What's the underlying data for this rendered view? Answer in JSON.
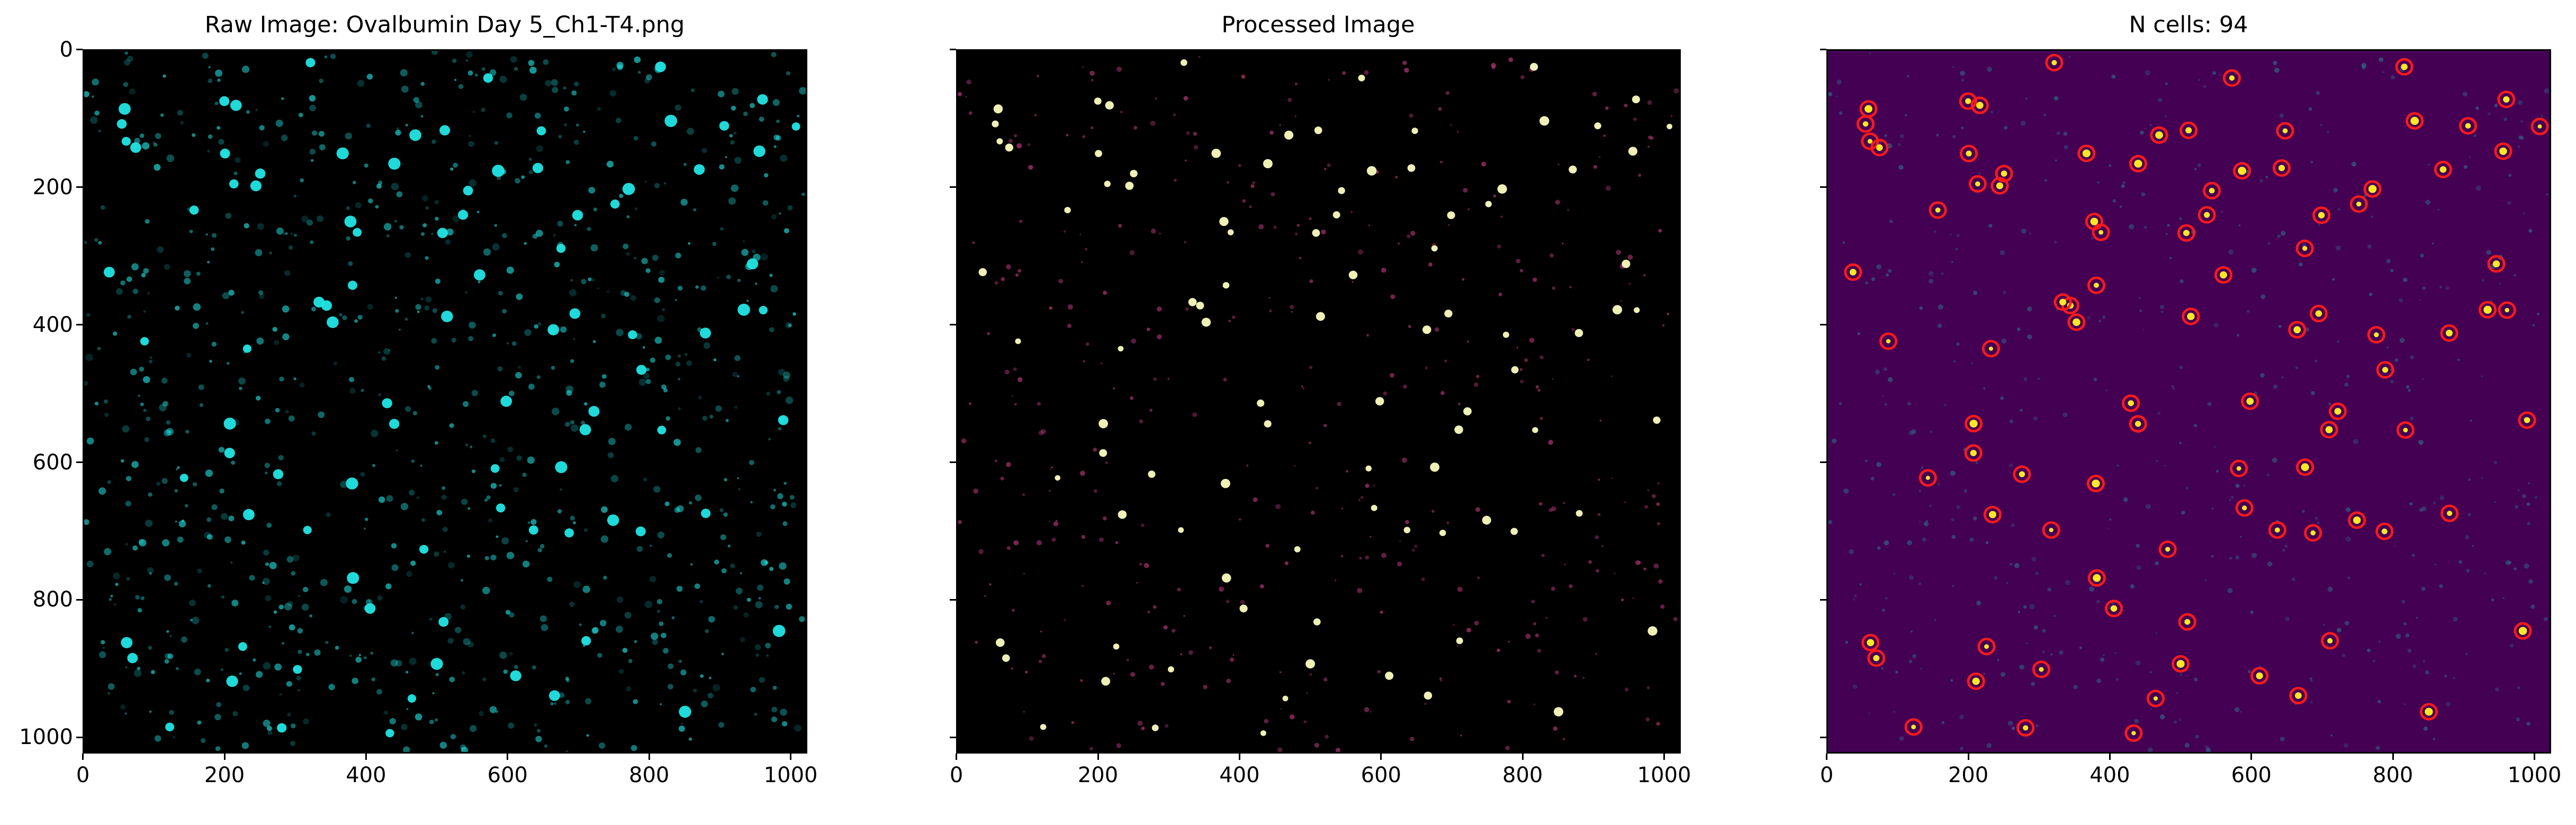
{
  "figure": {
    "panels": [
      {
        "id": "raw",
        "title": "Raw Image: Ovalbumin Day 5_Ch1-T4.png",
        "cmap": "cyan",
        "background": "#000000"
      },
      {
        "id": "processed",
        "title": "Processed Image",
        "cmap": "magma",
        "background": "#000000"
      },
      {
        "id": "detected",
        "title": "N cells: 94",
        "cmap": "viridis",
        "background": "#440154"
      }
    ],
    "x_ticks": [
      "0",
      "200",
      "400",
      "600",
      "800",
      "1000"
    ],
    "y_ticks": [
      "0",
      "200",
      "400",
      "600",
      "800",
      "1000"
    ],
    "cell_count": 94,
    "colors": {
      "cyan": "#22e5e5",
      "magma_hot": "#fcfdbf",
      "magma_mid": "#b73779",
      "viridis_bg": "#440154",
      "viridis_hi": "#fde725",
      "marker": "#ff1a1a"
    }
  }
}
